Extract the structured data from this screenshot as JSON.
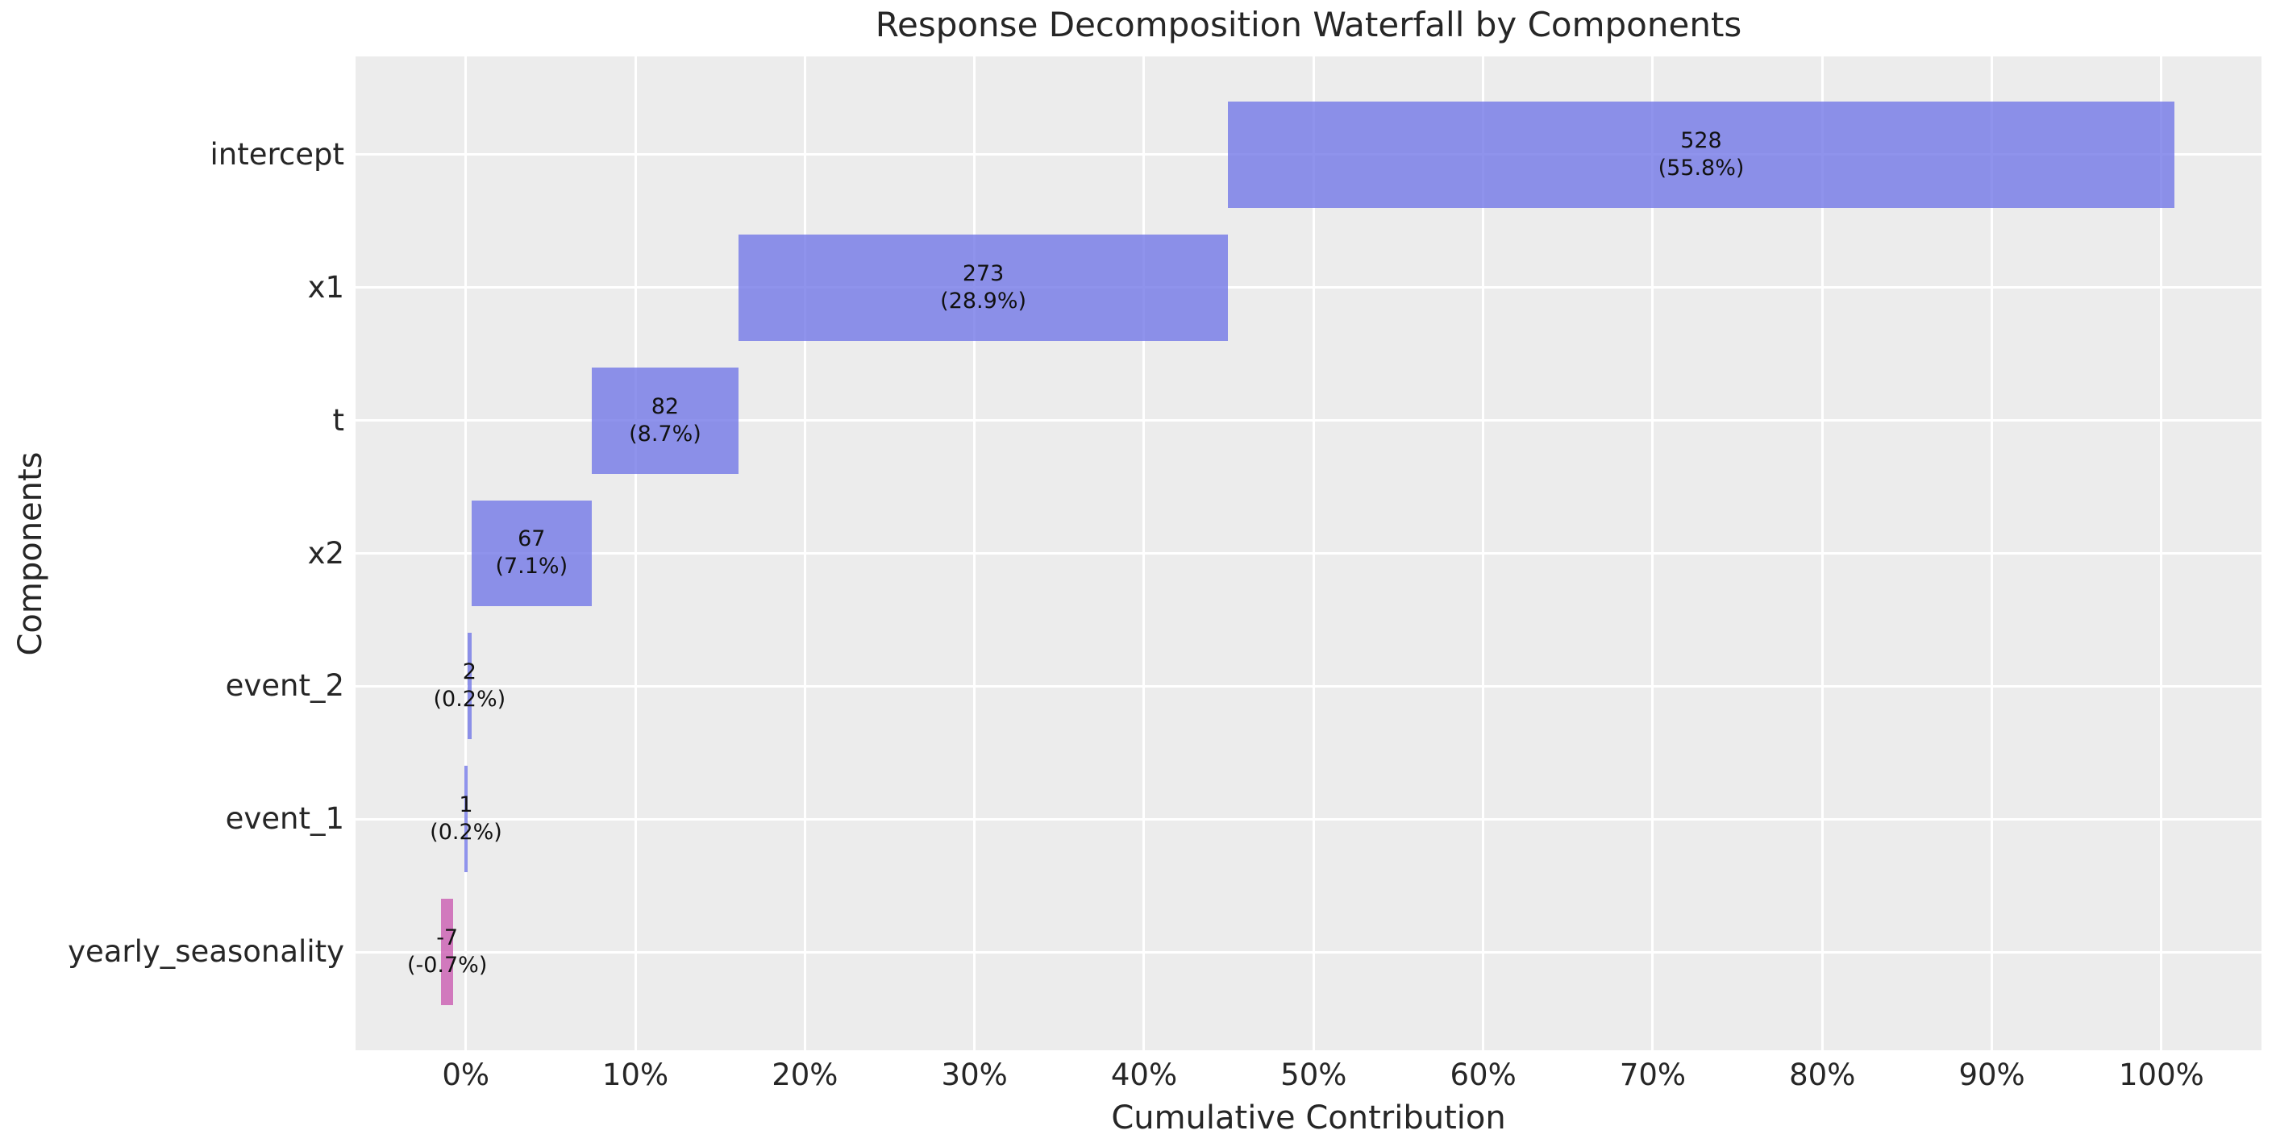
{
  "chart_data": {
    "type": "bar",
    "subtype": "horizontal-waterfall",
    "title": "Response Decomposition Waterfall by Components",
    "xlabel": "Cumulative Contribution",
    "ylabel": "Components",
    "legend": null,
    "grid": true,
    "categories": [
      "intercept",
      "x1",
      "t",
      "x2",
      "event_2",
      "event_1",
      "yearly_seasonality"
    ],
    "values": [
      528,
      273,
      82,
      67,
      2,
      1,
      -7
    ],
    "pct_of_total": [
      55.8,
      28.9,
      8.7,
      7.1,
      0.2,
      0.2,
      -0.7
    ],
    "bars": [
      {
        "label": "intercept",
        "value_label": "528",
        "pct_label": "(55.8%)",
        "start": 44.95,
        "end": 100.76,
        "sign": "positive"
      },
      {
        "label": "x1",
        "value_label": "273",
        "pct_label": "(28.9%)",
        "start": 16.09,
        "end": 44.95,
        "sign": "positive"
      },
      {
        "label": "t",
        "value_label": "82",
        "pct_label": "(8.7%)",
        "start": 7.42,
        "end": 16.09,
        "sign": "positive"
      },
      {
        "label": "x2",
        "value_label": "67",
        "pct_label": "(7.1%)",
        "start": 0.34,
        "end": 7.42,
        "sign": "positive"
      },
      {
        "label": "event_2",
        "value_label": "2",
        "pct_label": "(0.2%)",
        "start": 0.1,
        "end": 0.34,
        "sign": "positive"
      },
      {
        "label": "event_1",
        "value_label": "1",
        "pct_label": "(0.2%)",
        "start": -0.07,
        "end": 0.1,
        "sign": "positive"
      },
      {
        "label": "yearly_seasonality",
        "value_label": "-7",
        "pct_label": "(-0.7%)",
        "start": -1.45,
        "end": -0.74,
        "sign": "negative"
      }
    ],
    "x_ticks": [
      {
        "value": 0,
        "label": "0%"
      },
      {
        "value": 10,
        "label": "10%"
      },
      {
        "value": 20,
        "label": "20%"
      },
      {
        "value": 30,
        "label": "30%"
      },
      {
        "value": 40,
        "label": "40%"
      },
      {
        "value": 50,
        "label": "50%"
      },
      {
        "value": 60,
        "label": "60%"
      },
      {
        "value": 70,
        "label": "70%"
      },
      {
        "value": 80,
        "label": "80%"
      },
      {
        "value": 90,
        "label": "90%"
      },
      {
        "value": 100,
        "label": "100%"
      }
    ],
    "xlim": [
      -6.5,
      105.9
    ],
    "colors": {
      "positive_bar": "#7378E7",
      "negative_bar": "#CB5CB2",
      "bar_alpha": 0.8,
      "plot_background": "#ECECEC",
      "gridline": "#FFFFFF",
      "axis_text": "#262626",
      "bar_label_text": "#111111",
      "figure_background": "#FFFFFF"
    }
  }
}
